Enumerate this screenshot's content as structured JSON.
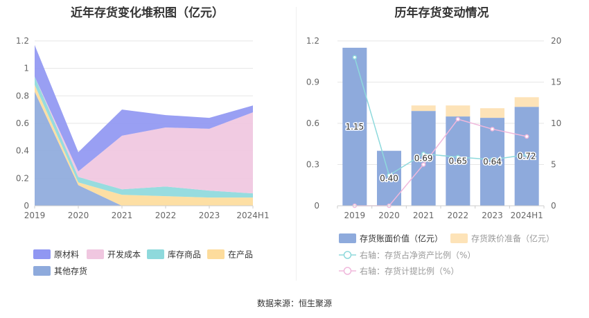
{
  "source_text": "数据来源：恒生聚源",
  "chart_data": [
    {
      "type": "area",
      "stacked": true,
      "title": "近年存货变化堆积图（亿元）",
      "x": [
        "2019",
        "2020",
        "2021",
        "2022",
        "2023",
        "2024H1"
      ],
      "ylim": [
        0,
        1.2
      ],
      "yticks": [
        "0",
        "0.2",
        "0.4",
        "0.6",
        "0.8",
        "1",
        "1.2"
      ],
      "legend_position": "bottom-left",
      "series": [
        {
          "name": "其他存货",
          "color": "#8eaadc",
          "values": [
            0.83,
            0.15,
            0.0,
            0.0,
            0.0,
            0.0
          ]
        },
        {
          "name": "在产品",
          "color": "#fddc9c",
          "values": [
            0.05,
            0.02,
            0.08,
            0.07,
            0.06,
            0.06
          ]
        },
        {
          "name": "库存商品",
          "color": "#8ed9dc",
          "values": [
            0.06,
            0.04,
            0.04,
            0.07,
            0.05,
            0.03
          ]
        },
        {
          "name": "开发成本",
          "color": "#f0c7e0",
          "values": [
            0.0,
            0.04,
            0.39,
            0.43,
            0.45,
            0.59
          ]
        },
        {
          "name": "原材料",
          "color": "#9097f2",
          "values": [
            0.23,
            0.14,
            0.19,
            0.09,
            0.08,
            0.05
          ]
        }
      ]
    },
    {
      "type": "bar",
      "title": "历年存货变动情况",
      "categories": [
        "2019",
        "2020",
        "2021",
        "2022",
        "2023",
        "2024H1"
      ],
      "ylim": [
        0,
        1.2
      ],
      "yticks": [
        "0",
        "0.3",
        "0.6",
        "0.9",
        "1.2"
      ],
      "y2lim": [
        0,
        20
      ],
      "y2ticks": [
        "0",
        "5",
        "10",
        "15",
        "20"
      ],
      "legend_position": "bottom",
      "series": [
        {
          "name": "存货账面价值（亿元）",
          "type": "bar",
          "stack": "inv",
          "color": "#8eaadc",
          "values": [
            1.15,
            0.4,
            0.69,
            0.65,
            0.64,
            0.72
          ],
          "labels": [
            "1.15",
            "0.40",
            "0.69",
            "0.65",
            "0.64",
            "0.72"
          ]
        },
        {
          "name": "存货跌价准备（亿元）",
          "type": "bar",
          "stack": "inv",
          "color": "#fde3b8",
          "values": [
            0.0,
            0.0,
            0.04,
            0.08,
            0.07,
            0.07
          ]
        },
        {
          "name": "右轴：存货占净资产比例（%）",
          "type": "line",
          "axis": "right",
          "color": "#8ed9dc",
          "values": [
            18.0,
            3.7,
            6.3,
            5.9,
            5.6,
            6.2
          ]
        },
        {
          "name": "右轴：存货计提比例（%）",
          "type": "line",
          "axis": "right",
          "color": "#f0b8dc",
          "values": [
            0.0,
            0.0,
            5.0,
            10.5,
            9.3,
            8.4
          ]
        }
      ]
    }
  ]
}
